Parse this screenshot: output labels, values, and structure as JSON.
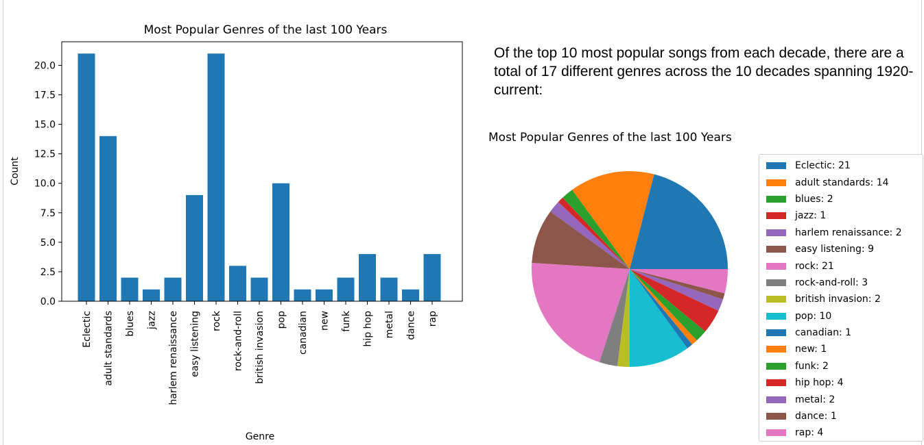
{
  "description": "Of the top 10 most popular songs from each decade, there are a total of 17 different genres across the 10 decades spanning 1920-current:",
  "colors": {
    "bar": "#1f77b4",
    "palette": [
      "#1f77b4",
      "#ff7f0e",
      "#2ca02c",
      "#d62728",
      "#9467bd",
      "#8c564b",
      "#e377c2",
      "#7f7f7f",
      "#bcbd22",
      "#17becf"
    ]
  },
  "chart_data": [
    {
      "type": "bar",
      "title": "Most Popular Genres of the last 100 Years",
      "xlabel": "Genre",
      "ylabel": "Count",
      "ylim": [
        0,
        22
      ],
      "yticks": [
        "0.0",
        "2.5",
        "5.0",
        "7.5",
        "10.0",
        "12.5",
        "15.0",
        "17.5",
        "20.0"
      ],
      "categories": [
        "Eclectic",
        "adult standards",
        "blues",
        "jazz",
        "harlem renaissance",
        "easy listening",
        "rock",
        "rock-and-roll",
        "british invasion",
        "pop",
        "canadian",
        "new",
        "funk",
        "hip hop",
        "metal",
        "dance",
        "rap"
      ],
      "values": [
        21,
        14,
        2,
        1,
        2,
        9,
        21,
        3,
        2,
        10,
        1,
        1,
        2,
        4,
        2,
        1,
        4
      ]
    },
    {
      "type": "pie",
      "title": "Most Popular Genres of the last 100 Years",
      "legend_position": "right",
      "labels": [
        "Eclectic",
        "adult standards",
        "blues",
        "jazz",
        "harlem renaissance",
        "easy listening",
        "rock",
        "rock-and-roll",
        "british invasion",
        "pop",
        "canadian",
        "new",
        "funk",
        "hip hop",
        "metal",
        "dance",
        "rap"
      ],
      "values": [
        21,
        14,
        2,
        1,
        2,
        9,
        21,
        3,
        2,
        10,
        1,
        1,
        2,
        4,
        2,
        1,
        4
      ],
      "legend": [
        "Eclectic: 21",
        "adult standards: 14",
        "blues: 2",
        "jazz: 1",
        "harlem renaissance: 2",
        "easy listening: 9",
        "rock: 21",
        "rock-and-roll: 3",
        "british invasion: 2",
        "pop: 10",
        "canadian: 1",
        "new: 1",
        "funk: 2",
        "hip hop: 4",
        "metal: 2",
        "dance: 1",
        "rap: 4"
      ]
    }
  ]
}
